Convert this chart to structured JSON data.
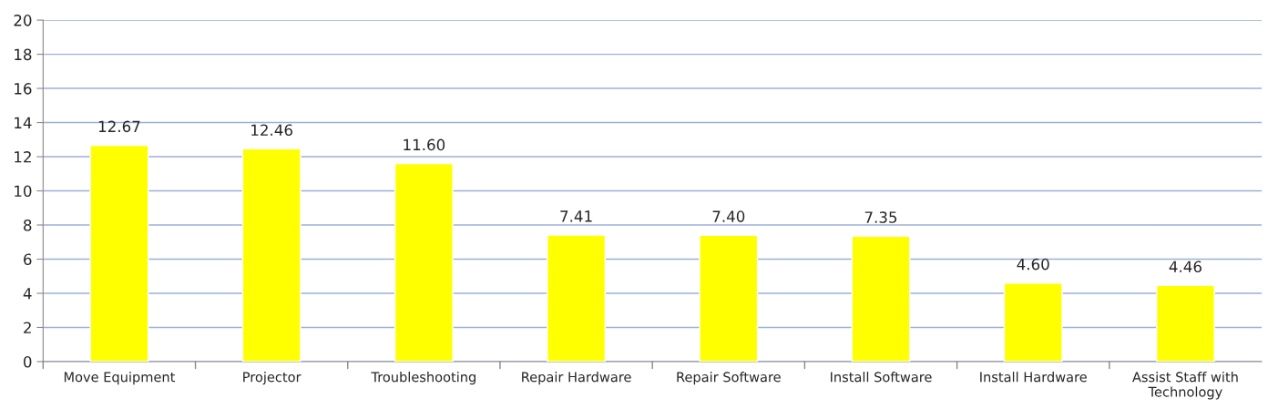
{
  "chart_data": {
    "type": "bar",
    "categories": [
      "Move Equipment",
      "Projector",
      "Troubleshooting",
      "Repair Hardware",
      "Repair Software",
      "Install Software",
      "Install Hardware",
      "Assist Staff with\nTechnology"
    ],
    "values": [
      12.67,
      12.46,
      11.6,
      7.41,
      7.4,
      7.35,
      4.6,
      4.46
    ],
    "value_labels": [
      "12.67",
      "12.46",
      "11.60",
      "7.41",
      "7.40",
      "7.35",
      "4.60",
      "4.46"
    ],
    "color": "#ffff00",
    "ylim": [
      0,
      20
    ],
    "yticks": [
      0,
      2,
      4,
      6,
      8,
      10,
      12,
      14,
      16,
      18,
      20
    ],
    "grid": "y",
    "legend": false
  }
}
